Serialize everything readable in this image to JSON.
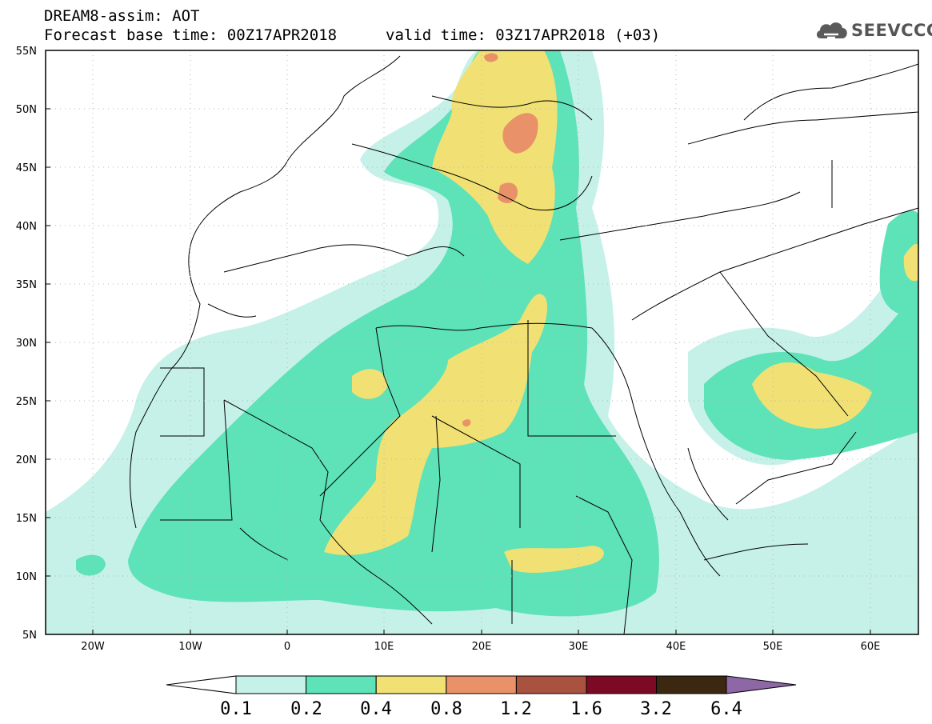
{
  "header": {
    "line1": "DREAM8-assim: AOT",
    "line2": "Forecast base time: 00Z17APR2018",
    "valid": "valid time: 03Z17APR2018 (+03)"
  },
  "logo": {
    "text": "SEEVCCC",
    "icon": "cloud-icon"
  },
  "map": {
    "lat_labels": [
      "55N",
      "50N",
      "45N",
      "40N",
      "35N",
      "30N",
      "25N",
      "20N",
      "15N",
      "10N",
      "5N"
    ],
    "lon_labels": [
      "20W",
      "10W",
      "0",
      "10E",
      "20E",
      "30E",
      "40E",
      "50E",
      "60E"
    ]
  },
  "colorbar": {
    "labels": [
      "0.1",
      "0.2",
      "0.4",
      "0.8",
      "1.2",
      "1.6",
      "3.2",
      "6.4"
    ],
    "colors": [
      "#c6f1e8",
      "#5ee2b8",
      "#f1e174",
      "#e9926a",
      "#a95240",
      "#7d0a24",
      "#3c2710",
      "#8e67a6"
    ],
    "under_color": "#ffffff"
  },
  "colors": {
    "sea_land": "#ffffff",
    "border": "#000000"
  }
}
